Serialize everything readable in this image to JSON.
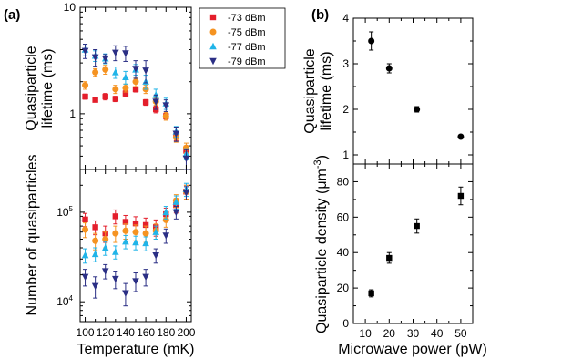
{
  "chart_data": [
    {
      "panel": "(a)",
      "type": "scatter",
      "ylabel": "Quasiparticle lifetime (ms)",
      "yscale": "log",
      "ylim": [
        0.3,
        10
      ],
      "xlim": [
        95,
        205
      ],
      "yticks": [
        "1",
        "10"
      ],
      "legend_placement": "top-right",
      "series": [
        {
          "name": "-73 dBm",
          "color": "#e41e2b",
          "marker": "square",
          "x": [
            100,
            110,
            120,
            130,
            140,
            150,
            160,
            170,
            180,
            190,
            200
          ],
          "y": [
            1.45,
            1.35,
            1.45,
            1.38,
            1.55,
            1.7,
            1.28,
            1.1,
            0.95,
            0.62,
            0.45
          ],
          "err": [
            0.08,
            0.06,
            0.1,
            0.08,
            0.1,
            0.1,
            0.08,
            0.08,
            0.06,
            0.06,
            0.05
          ]
        },
        {
          "name": "-75 dBm",
          "color": "#f59321",
          "marker": "circle",
          "x": [
            100,
            110,
            120,
            130,
            140,
            150,
            160,
            170,
            180,
            190,
            200
          ],
          "y": [
            1.85,
            2.45,
            2.6,
            1.7,
            1.75,
            2.0,
            1.7,
            1.3,
            0.95,
            0.6,
            0.48
          ],
          "err": [
            0.15,
            0.2,
            0.25,
            0.15,
            0.15,
            0.2,
            0.15,
            0.1,
            0.08,
            0.06,
            0.05
          ]
        },
        {
          "name": "-77 dBm",
          "color": "#20b4e8",
          "marker": "triangle-up",
          "x": [
            100,
            110,
            120,
            130,
            140,
            150,
            160,
            170,
            180,
            190,
            200
          ],
          "y": [
            4.0,
            3.5,
            3.3,
            2.45,
            2.2,
            2.6,
            2.0,
            1.5,
            1.25,
            0.68,
            0.42
          ],
          "err": [
            0.5,
            0.4,
            0.35,
            0.3,
            0.3,
            0.3,
            0.3,
            0.2,
            0.15,
            0.08,
            0.05
          ]
        },
        {
          "name": "-79 dBm",
          "color": "#2b2f85",
          "marker": "triangle-down",
          "x": [
            100,
            110,
            120,
            130,
            140,
            150,
            160,
            170,
            180,
            190,
            200
          ],
          "y": [
            3.9,
            3.4,
            3.3,
            3.75,
            3.7,
            2.65,
            2.55,
            1.3,
            1.2,
            0.65,
            0.38
          ],
          "err": [
            0.6,
            0.6,
            0.3,
            0.6,
            0.6,
            0.5,
            0.6,
            0.2,
            0.15,
            0.1,
            0.08
          ]
        }
      ]
    },
    {
      "panel": "(a)",
      "type": "scatter",
      "xlabel": "Temperature (mK)",
      "ylabel": "Number of quasiparticles",
      "yscale": "log",
      "ylim": [
        6000,
        300000
      ],
      "xlim": [
        95,
        205
      ],
      "xticks": [
        100,
        120,
        140,
        160,
        180,
        200
      ],
      "yticks": [
        "10",
        "10"
      ],
      "ytick_exponents": [
        "4",
        "5"
      ],
      "series": [
        {
          "name": "-73 dBm",
          "color": "#e41e2b",
          "marker": "square",
          "x": [
            100,
            110,
            120,
            130,
            140,
            150,
            160,
            170,
            180,
            190,
            200
          ],
          "y": [
            83000,
            68000,
            58000,
            90000,
            78000,
            75000,
            72000,
            68000,
            95000,
            120000,
            170000
          ],
          "err": [
            14000,
            12000,
            12000,
            16000,
            14000,
            14000,
            14000,
            14000,
            16000,
            22000,
            30000
          ]
        },
        {
          "name": "-75 dBm",
          "color": "#f59321",
          "marker": "circle",
          "x": [
            100,
            110,
            120,
            130,
            140,
            150,
            160,
            170,
            180,
            190,
            200
          ],
          "y": [
            64000,
            48000,
            50000,
            58000,
            62000,
            60000,
            58000,
            62000,
            82000,
            135000,
            170000
          ],
          "err": [
            12000,
            10000,
            10000,
            12000,
            12000,
            12000,
            12000,
            12000,
            14000,
            22000,
            30000
          ]
        },
        {
          "name": "-77 dBm",
          "color": "#20b4e8",
          "marker": "triangle-up",
          "x": [
            100,
            110,
            120,
            130,
            140,
            150,
            160,
            170,
            180,
            190,
            200
          ],
          "y": [
            33000,
            34000,
            40000,
            36000,
            47000,
            46000,
            45000,
            60000,
            100000,
            130000,
            180000
          ],
          "err": [
            6000,
            6000,
            7000,
            6000,
            8000,
            8000,
            8000,
            10000,
            16000,
            22000,
            30000
          ]
        },
        {
          "name": "-79 dBm",
          "color": "#2b2f85",
          "marker": "triangle-down",
          "x": [
            100,
            110,
            120,
            130,
            140,
            150,
            160,
            170,
            180,
            190,
            200
          ],
          "y": [
            19000,
            15000,
            22000,
            18000,
            12500,
            17000,
            19000,
            33000,
            55000,
            100000,
            165000
          ],
          "err": [
            4000,
            4000,
            4000,
            4000,
            3500,
            4000,
            4000,
            6000,
            10000,
            16000,
            28000
          ]
        }
      ]
    },
    {
      "panel": "(b)",
      "type": "scatter",
      "ylabel": "Quasiparticle lifetime (ms)",
      "ylim": [
        0.8,
        4
      ],
      "xlim": [
        5,
        55
      ],
      "yticks": [
        1,
        2,
        3,
        4
      ],
      "series": [
        {
          "color": "#000000",
          "marker": "circle",
          "x": [
            12.5,
            20,
            31.6,
            50
          ],
          "y": [
            3.5,
            2.9,
            2.0,
            1.4
          ],
          "err": [
            0.2,
            0.1,
            0.06,
            0.03
          ]
        }
      ]
    },
    {
      "panel": "(b)",
      "type": "scatter",
      "xlabel": "Microwave power (pW)",
      "ylabel": "Quasiparticle density (μm⁻³)",
      "ylim": [
        0,
        90
      ],
      "xlim": [
        5,
        55
      ],
      "xticks": [
        10,
        20,
        30,
        40,
        50
      ],
      "yticks": [
        0,
        20,
        40,
        60,
        80
      ],
      "series": [
        {
          "color": "#000000",
          "marker": "square",
          "x": [
            12.5,
            20,
            31.6,
            50
          ],
          "y": [
            17,
            37,
            55,
            72
          ],
          "err": [
            2,
            3,
            4,
            5
          ]
        }
      ]
    }
  ],
  "labels": {
    "panel_a": "(a)",
    "panel_b": "(b)",
    "a_top_ylabel_1": "Quasiparticle",
    "a_top_ylabel_2": "lifetime (ms)",
    "a_bot_ylabel": "Number of quasiparticles",
    "a_xlabel": "Temperature (mK)",
    "b_top_ylabel_1": "Quasiparticle",
    "b_top_ylabel_2": "lifetime (ms)",
    "b_bot_ylabel": "Quasiparticle density (μm",
    "b_bot_ylabel_sup": "-3",
    "b_bot_ylabel_end": ")",
    "b_xlabel": "Microwave power (pW)"
  }
}
